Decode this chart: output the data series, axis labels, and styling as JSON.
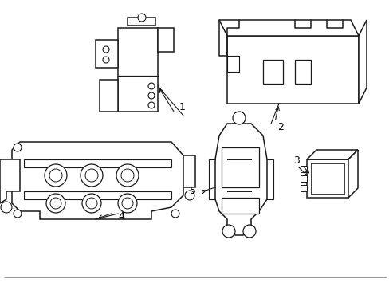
{
  "background_color": "#ffffff",
  "line_color": "#1a1a1a",
  "label_color": "#000000",
  "line_width": 1.1,
  "figsize": [
    4.89,
    3.6
  ],
  "dpi": 100
}
